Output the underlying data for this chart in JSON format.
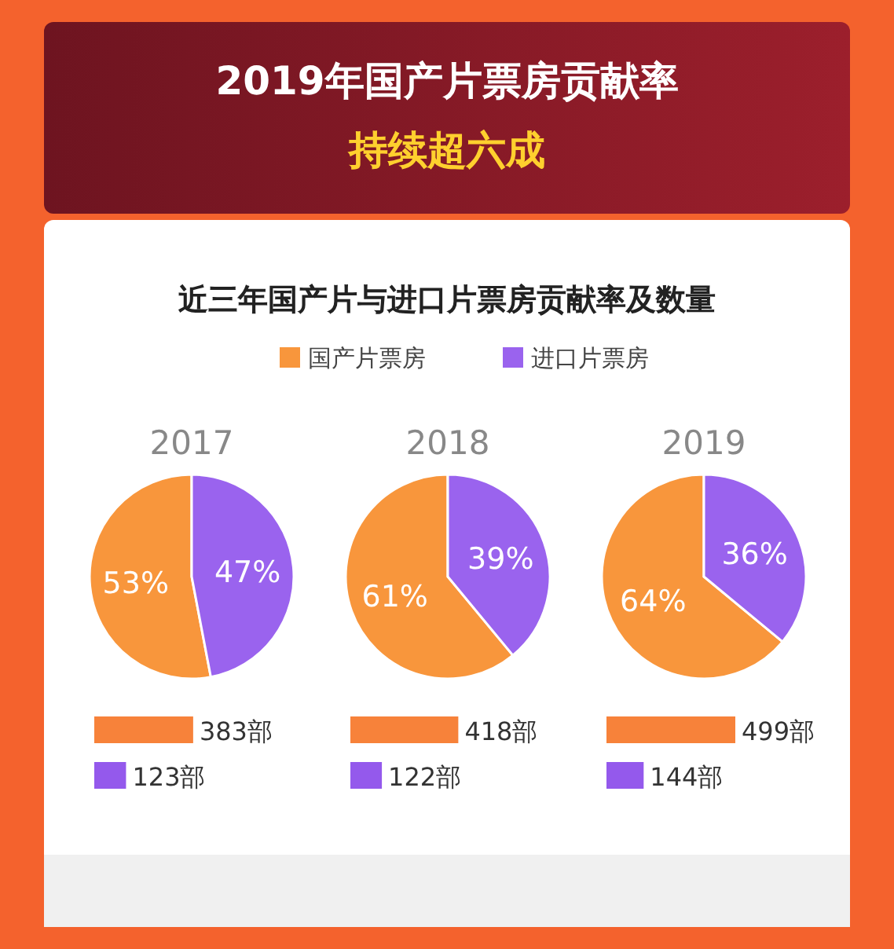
{
  "chart_data": [
    {
      "type": "other",
      "title": "2019年国产片票房贡献率",
      "subtitle": "持续超六成",
      "annotations": [
        "近三年国产片与进口片票房贡献率及数量"
      ]
    },
    {
      "type": "pie",
      "title": "2017",
      "categories": [
        "国产片票房",
        "进口片票房"
      ],
      "values": [
        53,
        47
      ],
      "colors": [
        "#f8963c",
        "#9a63ee"
      ],
      "value_labels": [
        "53%",
        "47%"
      ],
      "legend": "top"
    },
    {
      "type": "bar",
      "orientation": "horizontal",
      "categories": [
        null,
        null
      ],
      "values": [
        383,
        123
      ],
      "colors": [
        "#f7823a",
        "#9459ec"
      ],
      "value_labels": [
        "383部",
        "123部"
      ]
    },
    {
      "type": "pie",
      "title": "2018",
      "values": [
        61,
        39
      ],
      "colors": [
        "#f8963c",
        "#9a63ee"
      ],
      "value_labels": [
        "61%",
        "39%"
      ]
    },
    {
      "type": "bar",
      "orientation": "horizontal",
      "categories": [
        null,
        null
      ],
      "values": [
        418,
        122
      ],
      "colors": [
        "#f7823a",
        "#9459ec"
      ],
      "value_labels": [
        "418部",
        "122部"
      ]
    },
    {
      "type": "pie",
      "title": "2019",
      "values": [
        64,
        36
      ],
      "colors": [
        "#f8963c",
        "#9a63ee"
      ],
      "value_labels": [
        "64%",
        "36%"
      ]
    },
    {
      "type": "bar",
      "orientation": "horizontal",
      "categories": [
        null,
        null
      ],
      "values": [
        499,
        144
      ],
      "colors": [
        "#f7823a",
        "#9459ec"
      ],
      "value_labels": [
        "499部",
        "144部"
      ]
    }
  ]
}
